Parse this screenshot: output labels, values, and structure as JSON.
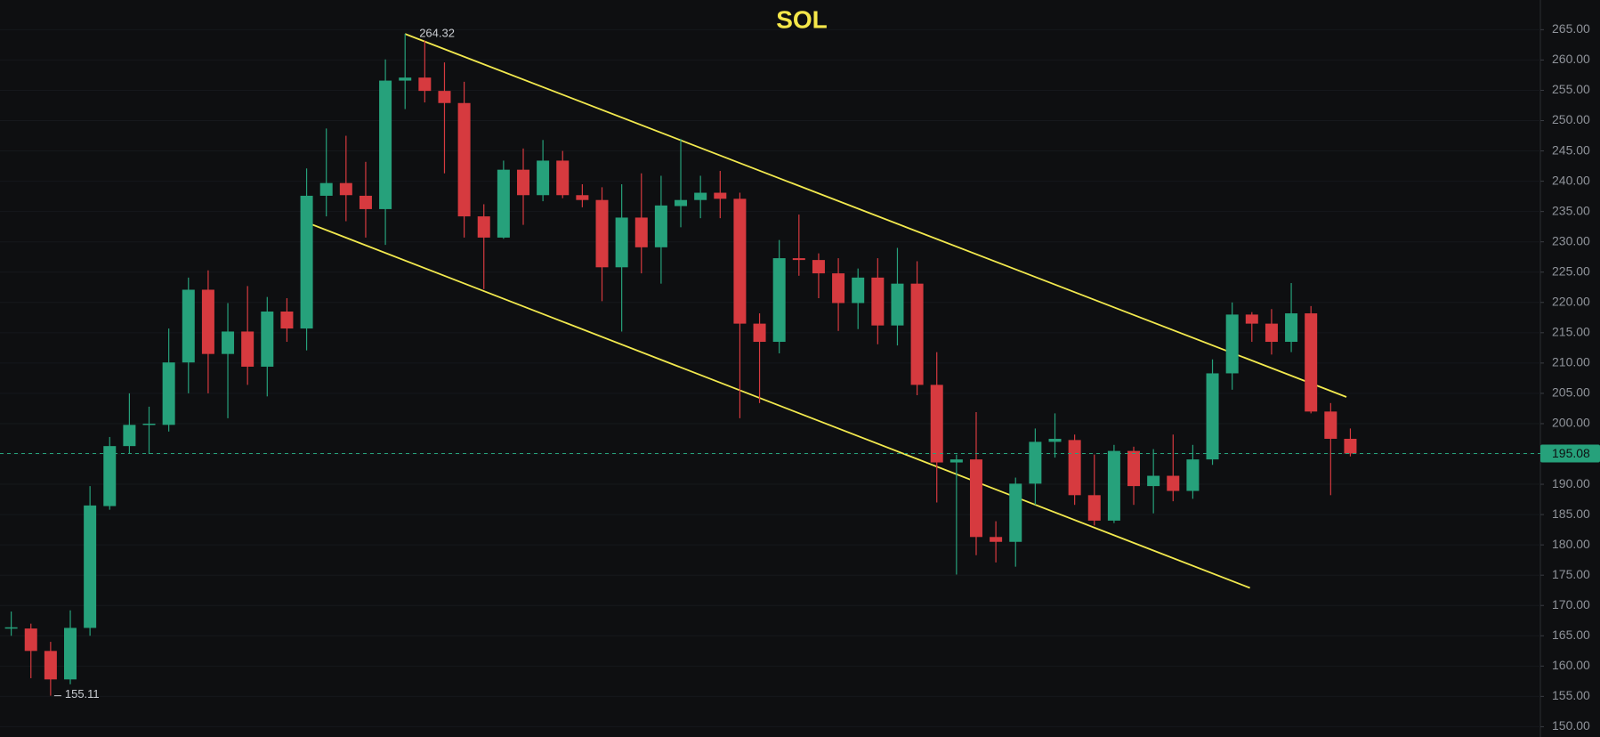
{
  "chart_data": {
    "type": "candlestick",
    "title": "SOL",
    "title_color": "#f5e74a",
    "up_color": "#26a17b",
    "down_color": "#d63a3f",
    "xlim": [
      -0.57,
      77.65
    ],
    "ylim": [
      148.3,
      269.9
    ],
    "yticks": [
      {
        "value": 150,
        "label": "150.00"
      },
      {
        "value": 155,
        "label": "155.00"
      },
      {
        "value": 160,
        "label": "160.00"
      },
      {
        "value": 165,
        "label": "165.00"
      },
      {
        "value": 170,
        "label": "170.00"
      },
      {
        "value": 175,
        "label": "175.00"
      },
      {
        "value": 180,
        "label": "180.00"
      },
      {
        "value": 185,
        "label": "185.00"
      },
      {
        "value": 190,
        "label": "190.00"
      },
      {
        "value": 195,
        "label": "195.00"
      },
      {
        "value": 200,
        "label": "200.00"
      },
      {
        "value": 205,
        "label": "205.00"
      },
      {
        "value": 210,
        "label": "210.00"
      },
      {
        "value": 215,
        "label": "215.00"
      },
      {
        "value": 220,
        "label": "220.00"
      },
      {
        "value": 225,
        "label": "225.00"
      },
      {
        "value": 230,
        "label": "230.00"
      },
      {
        "value": 235,
        "label": "235.00"
      },
      {
        "value": 240,
        "label": "240.00"
      },
      {
        "value": 245,
        "label": "245.00"
      },
      {
        "value": 250,
        "label": "250.00"
      },
      {
        "value": 255,
        "label": "255.00"
      },
      {
        "value": 260,
        "label": "260.00"
      },
      {
        "value": 265,
        "label": "265.00"
      }
    ],
    "open": [
      166.2,
      166.2,
      162.5,
      157.8,
      166.3,
      186.4,
      196.3,
      199.8,
      199.8,
      210.1,
      222.1,
      211.5,
      215.2,
      209.4,
      218.5,
      215.7,
      237.6,
      239.7,
      237.6,
      235.4,
      256.6,
      257.1,
      254.9,
      252.9,
      234.2,
      230.7,
      241.9,
      237.7,
      243.4,
      237.7,
      236.9,
      225.8,
      234.0,
      229.1,
      235.9,
      236.9,
      238.1,
      237.1,
      216.5,
      213.5,
      227.3,
      227.0,
      224.8,
      219.9,
      224.1,
      216.2,
      223.1,
      206.4,
      193.6,
      194.1,
      181.3,
      180.5,
      190.1,
      197.0,
      197.3,
      188.2,
      184.0,
      195.5,
      189.7,
      191.4,
      188.9,
      194.1,
      208.3,
      218.0,
      216.5,
      213.5,
      218.2,
      202.0,
      197.5
    ],
    "high": [
      169.0,
      167.0,
      164.0,
      169.2,
      189.7,
      197.8,
      205.0,
      202.8,
      215.7,
      224.1,
      225.3,
      219.9,
      222.7,
      220.9,
      220.7,
      242.1,
      248.7,
      247.5,
      243.2,
      260.1,
      264.32,
      263.2,
      259.6,
      256.4,
      236.2,
      243.4,
      245.4,
      246.8,
      245.0,
      239.5,
      239.0,
      239.5,
      241.3,
      240.9,
      247.0,
      240.9,
      241.7,
      238.1,
      218.2,
      230.3,
      234.5,
      228.1,
      227.3,
      225.6,
      227.3,
      229.0,
      226.8,
      211.8,
      194.9,
      201.9,
      183.9,
      191.1,
      199.2,
      201.7,
      198.2,
      194.9,
      196.5,
      196.2,
      195.8,
      198.2,
      196.5,
      210.6,
      220.0,
      218.4,
      218.9,
      223.2,
      219.4,
      203.4,
      199.2
    ],
    "low": [
      165.0,
      158.0,
      155.11,
      157.0,
      165.0,
      185.8,
      195.0,
      195.0,
      198.7,
      205.0,
      205.0,
      200.9,
      206.4,
      204.5,
      213.5,
      212.1,
      234.2,
      233.4,
      230.7,
      229.5,
      251.9,
      253.0,
      241.3,
      230.7,
      222.2,
      230.5,
      232.8,
      236.7,
      237.2,
      235.7,
      220.2,
      215.2,
      224.8,
      223.1,
      232.4,
      233.9,
      233.9,
      200.9,
      203.4,
      211.6,
      224.4,
      220.7,
      215.3,
      215.6,
      213.1,
      212.9,
      204.7,
      187.0,
      175.1,
      178.3,
      177.1,
      176.4,
      186.6,
      194.4,
      186.6,
      183.2,
      183.6,
      186.6,
      185.2,
      187.2,
      187.6,
      193.2,
      205.6,
      213.5,
      211.4,
      211.8,
      201.7,
      188.2,
      194.6
    ],
    "close": [
      166.4,
      162.5,
      157.8,
      166.3,
      186.5,
      196.3,
      199.8,
      200.0,
      210.1,
      222.1,
      211.5,
      215.2,
      209.4,
      218.5,
      215.7,
      237.6,
      239.7,
      237.7,
      235.4,
      256.6,
      257.1,
      254.9,
      252.9,
      234.2,
      230.7,
      241.9,
      237.7,
      243.4,
      237.7,
      236.9,
      225.8,
      234.0,
      229.1,
      236.0,
      236.9,
      238.1,
      237.1,
      216.5,
      213.5,
      227.3,
      227.0,
      224.8,
      219.9,
      224.1,
      216.2,
      223.1,
      206.4,
      193.6,
      194.1,
      181.3,
      180.5,
      190.1,
      197.0,
      197.5,
      188.2,
      184.0,
      195.5,
      189.7,
      191.4,
      188.9,
      194.1,
      208.3,
      218.0,
      216.5,
      213.5,
      218.2,
      202.0,
      197.5,
      195.08
    ],
    "trendlines": [
      {
        "color": "#f2e94e",
        "x": [
          20,
          67.8
        ],
        "y": [
          264.3,
          204.4
        ]
      },
      {
        "color": "#f2e94e",
        "x": [
          15,
          62.9
        ],
        "y": [
          233.2,
          172.9
        ]
      }
    ]
  }
}
